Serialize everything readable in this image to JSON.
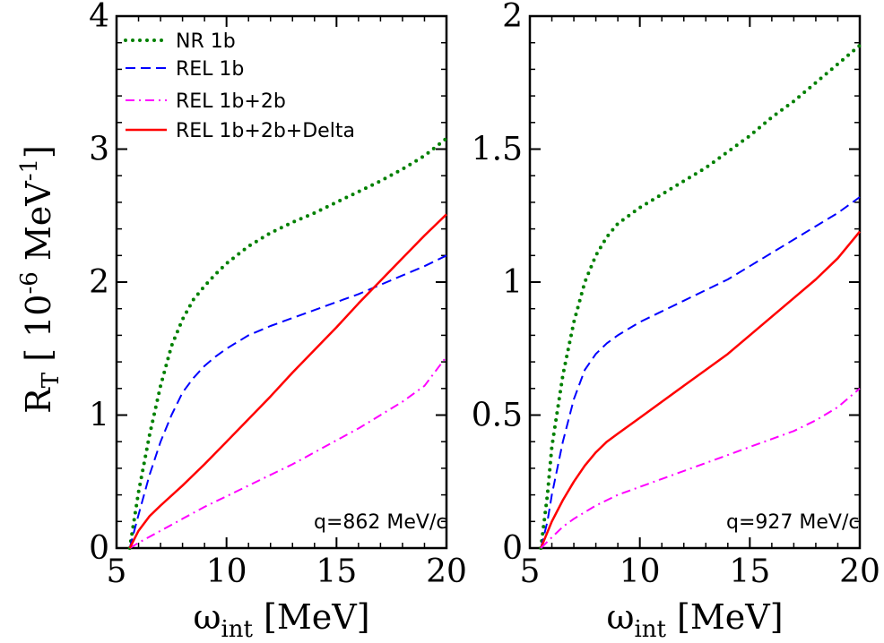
{
  "chart_data": [
    {
      "type": "line",
      "xlabel": {
        "main": "ω",
        "sub": "int",
        "rest": " [MeV]"
      },
      "ylabel": {
        "main": "R",
        "sub": "T",
        "rest": " [ 10",
        "sup1": "-6",
        "rest2": " MeV",
        "sup2": "-1",
        "rest3": "]"
      },
      "xlim": [
        5,
        20
      ],
      "ylim": [
        0,
        4
      ],
      "xticks": [
        "5",
        "10",
        "15",
        "20"
      ],
      "yticks": [
        "0",
        "1",
        "2",
        "3",
        "4"
      ],
      "grid": false,
      "legend_position": "top-left",
      "annotation": "q=862 MeV/c",
      "series": [
        {
          "name": "NR 1b",
          "color": "#008000",
          "style": "dotted",
          "x": [
            5.6,
            6.0,
            6.5,
            7.0,
            7.5,
            8.0,
            8.5,
            9.0,
            9.5,
            10.0,
            11.0,
            12.0,
            13.0,
            14.0,
            15.0,
            16.0,
            17.0,
            18.0,
            19.0,
            20.0
          ],
          "y": [
            0.0,
            0.42,
            0.85,
            1.22,
            1.52,
            1.72,
            1.87,
            1.97,
            2.06,
            2.14,
            2.27,
            2.37,
            2.45,
            2.52,
            2.6,
            2.68,
            2.76,
            2.85,
            2.95,
            3.08
          ]
        },
        {
          "name": "REL 1b",
          "color": "#0000ff",
          "style": "dashed",
          "x": [
            5.6,
            6.0,
            6.5,
            7.0,
            7.5,
            8.0,
            8.5,
            9.0,
            9.5,
            10.0,
            11.0,
            12.0,
            13.0,
            14.0,
            15.0,
            16.0,
            17.0,
            18.0,
            19.0,
            20.0
          ],
          "y": [
            0.0,
            0.25,
            0.55,
            0.8,
            1.0,
            1.17,
            1.28,
            1.37,
            1.44,
            1.5,
            1.6,
            1.67,
            1.73,
            1.79,
            1.85,
            1.91,
            1.98,
            2.05,
            2.12,
            2.2
          ]
        },
        {
          "name": "REL 1b+2b",
          "color": "#ff00ff",
          "style": "dashdot",
          "x": [
            5.6,
            6.0,
            7.0,
            8.0,
            9.0,
            10.0,
            11.0,
            12.0,
            13.0,
            14.0,
            15.0,
            16.0,
            17.0,
            18.0,
            19.0,
            20.0
          ],
          "y": [
            0.0,
            0.04,
            0.13,
            0.22,
            0.31,
            0.39,
            0.47,
            0.55,
            0.63,
            0.72,
            0.81,
            0.9,
            1.0,
            1.1,
            1.22,
            1.44
          ]
        },
        {
          "name": "REL 1b+2b+Delta",
          "color": "#ff0000",
          "style": "solid",
          "x": [
            5.6,
            6.0,
            6.5,
            7.0,
            8.0,
            9.0,
            10.0,
            11.0,
            12.0,
            13.0,
            14.0,
            15.0,
            16.0,
            17.0,
            18.0,
            19.0,
            20.0
          ],
          "y": [
            0.0,
            0.13,
            0.24,
            0.32,
            0.47,
            0.63,
            0.8,
            0.97,
            1.14,
            1.32,
            1.49,
            1.66,
            1.84,
            2.01,
            2.18,
            2.35,
            2.51
          ]
        }
      ]
    },
    {
      "type": "line",
      "xlabel": {
        "main": "ω",
        "sub": "int",
        "rest": " [MeV]"
      },
      "xlim": [
        5,
        20
      ],
      "ylim": [
        0,
        2
      ],
      "xticks": [
        "5",
        "10",
        "15",
        "20"
      ],
      "yticks": [
        "0",
        "0.5",
        "1",
        "1.5",
        "2"
      ],
      "grid": false,
      "annotation": "q=927 MeV/c",
      "series": [
        {
          "name": "NR 1b",
          "color": "#008000",
          "style": "dotted",
          "x": [
            5.5,
            5.8,
            6.0,
            6.5,
            7.0,
            7.5,
            8.0,
            8.5,
            9.0,
            9.5,
            10.0,
            11.0,
            12.0,
            13.0,
            14.0,
            15.0,
            16.0,
            17.0,
            18.0,
            19.0,
            20.0
          ],
          "y": [
            0.0,
            0.2,
            0.38,
            0.65,
            0.85,
            1.0,
            1.1,
            1.17,
            1.22,
            1.25,
            1.28,
            1.33,
            1.38,
            1.43,
            1.49,
            1.55,
            1.62,
            1.68,
            1.75,
            1.82,
            1.89
          ]
        },
        {
          "name": "REL 1b",
          "color": "#0000ff",
          "style": "dashed",
          "x": [
            5.5,
            5.8,
            6.0,
            6.5,
            7.0,
            7.5,
            8.0,
            8.5,
            9.0,
            10.0,
            11.0,
            12.0,
            13.0,
            14.0,
            15.0,
            16.0,
            17.0,
            18.0,
            19.0,
            20.0
          ],
          "y": [
            0.0,
            0.1,
            0.2,
            0.4,
            0.56,
            0.67,
            0.73,
            0.77,
            0.8,
            0.85,
            0.89,
            0.93,
            0.97,
            1.01,
            1.06,
            1.11,
            1.16,
            1.21,
            1.26,
            1.32
          ]
        },
        {
          "name": "REL 1b+2b+Delta",
          "color": "#ff0000",
          "style": "solid",
          "x": [
            5.5,
            6.0,
            6.5,
            7.0,
            7.5,
            8.0,
            8.5,
            9.0,
            10.0,
            11.0,
            12.0,
            13.0,
            14.0,
            15.0,
            16.0,
            17.0,
            18.0,
            19.0,
            20.0
          ],
          "y": [
            0.0,
            0.1,
            0.18,
            0.25,
            0.31,
            0.36,
            0.4,
            0.43,
            0.49,
            0.55,
            0.61,
            0.67,
            0.73,
            0.8,
            0.87,
            0.94,
            1.01,
            1.09,
            1.19
          ]
        },
        {
          "name": "REL 1b+2b",
          "color": "#ff00ff",
          "style": "dashdot",
          "x": [
            5.5,
            6.0,
            6.5,
            7.0,
            8.0,
            9.0,
            10.0,
            11.0,
            12.0,
            13.0,
            14.0,
            15.0,
            16.0,
            17.0,
            18.0,
            19.0,
            20.0
          ],
          "y": [
            0.0,
            0.04,
            0.08,
            0.11,
            0.16,
            0.2,
            0.23,
            0.26,
            0.29,
            0.32,
            0.35,
            0.38,
            0.41,
            0.44,
            0.48,
            0.53,
            0.6
          ]
        }
      ]
    }
  ]
}
